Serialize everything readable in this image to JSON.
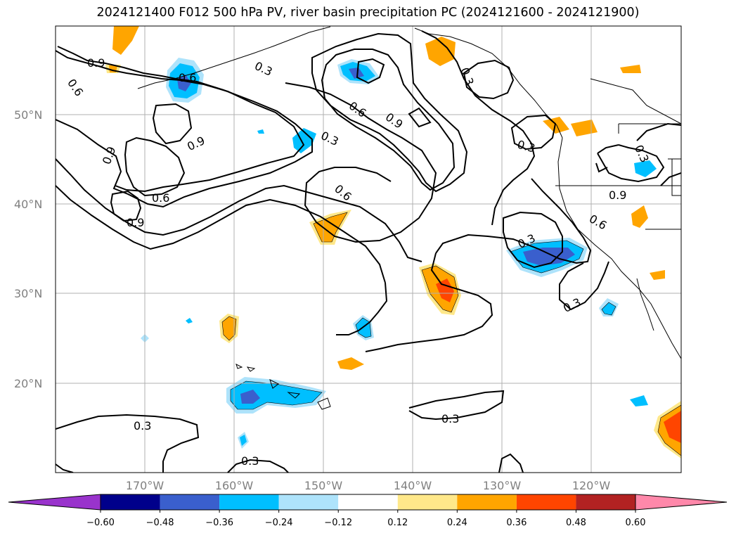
{
  "title": "2024121400 F012 500 hPa PV, river basin precipitation PC (2024121600 - 2024121900)",
  "map": {
    "lat_labels": [
      "50°N",
      "40°N",
      "30°N",
      "20°N"
    ],
    "lon_labels": [
      "170°W",
      "160°W",
      "150°W",
      "140°W",
      "130°W",
      "120°W"
    ],
    "contour_labels": [
      "0.9",
      "0.6",
      "0.6",
      "0.3",
      "0.9",
      "0.6",
      "0.9",
      "0.3",
      "0.9",
      "0.6",
      "0.9",
      "0.6",
      "0.3",
      "0.3",
      "0.3",
      "0.9",
      "0.3",
      "0.6",
      "0.3",
      "0.3",
      "0.3"
    ]
  },
  "colorbar": {
    "levels": [
      "−0.60",
      "−0.48",
      "−0.36",
      "−0.24",
      "−0.12",
      "0.12",
      "0.24",
      "0.36",
      "0.48",
      "0.60"
    ],
    "colors": [
      "#9933cc",
      "#00008b",
      "#3a5fcd",
      "#00bfff",
      "#aee3fb",
      "#ffffff",
      "#ffe88a",
      "#ffa500",
      "#ff4500",
      "#b22222",
      "#ff88aa"
    ]
  }
}
